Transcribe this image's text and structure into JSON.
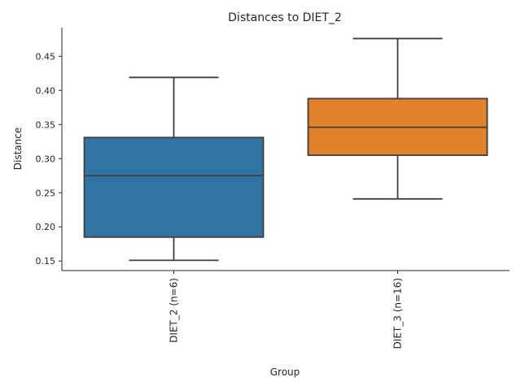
{
  "chart_data": {
    "type": "box",
    "title": "Distances to DIET_2",
    "xlabel": "Group",
    "ylabel": "Distance",
    "ylim": [
      0.136,
      0.492
    ],
    "yticks": [
      0.15,
      0.2,
      0.25,
      0.3,
      0.35,
      0.4,
      0.45
    ],
    "ytick_labels": [
      "0.15",
      "0.20",
      "0.25",
      "0.30",
      "0.35",
      "0.40",
      "0.45"
    ],
    "categories": [
      "DIET_2 (n=6)",
      "DIET_3 (n=16)"
    ],
    "boxes": [
      {
        "name": "DIET_2 (n=6)",
        "color": "#3274a1",
        "whislo": 0.151,
        "q1": 0.185,
        "med": 0.275,
        "q3": 0.331,
        "whishi": 0.419
      },
      {
        "name": "DIET_3 (n=16)",
        "color": "#e1812c",
        "whislo": 0.241,
        "q1": 0.305,
        "med": 0.346,
        "q3": 0.388,
        "whishi": 0.476
      }
    ],
    "grid": false,
    "legend": "none"
  }
}
